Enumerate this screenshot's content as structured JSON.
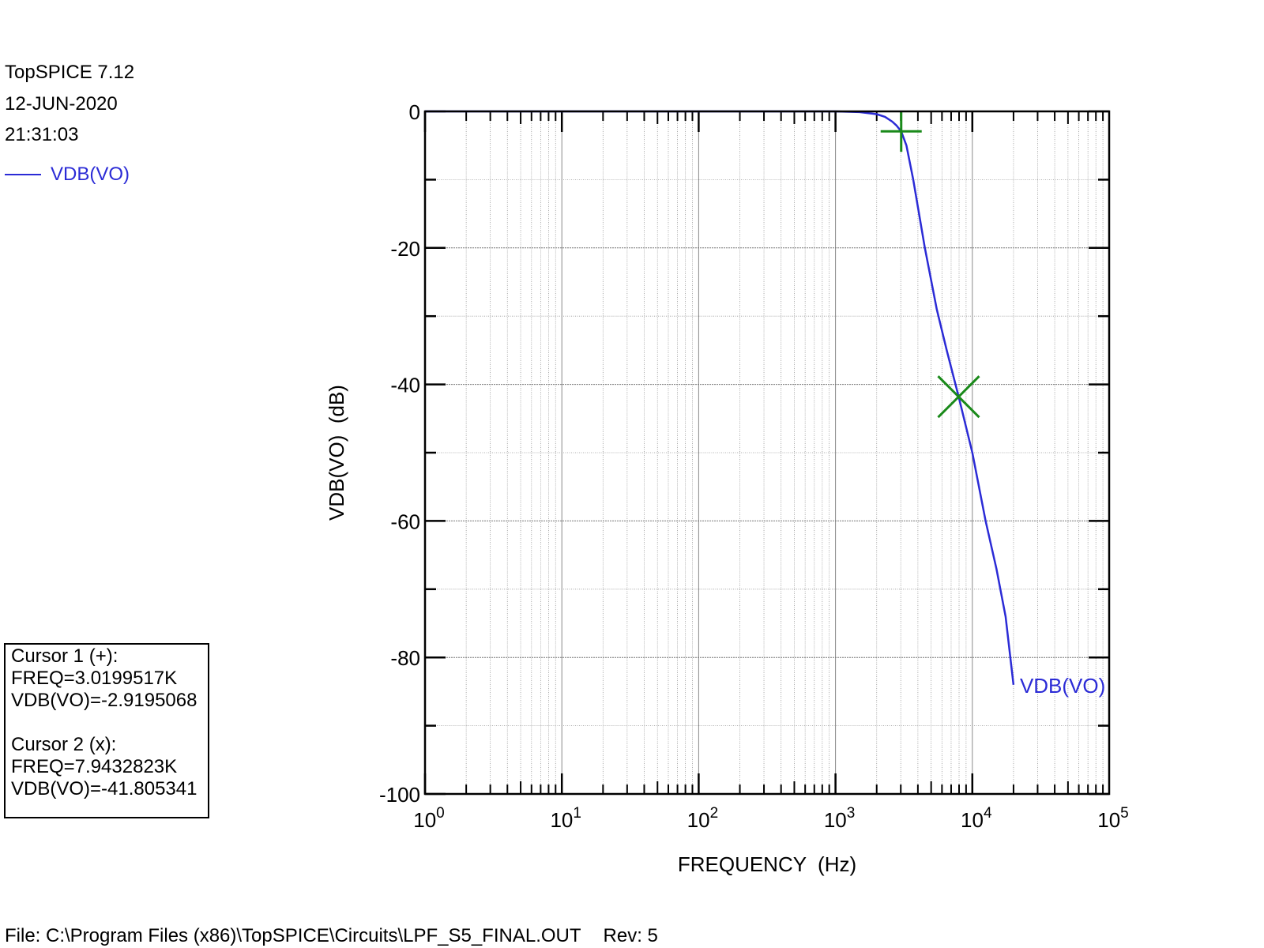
{
  "header": {
    "app": "TopSPICE 7.12",
    "date": "12-JUN-2020",
    "time": "21:31:03"
  },
  "legend": {
    "label": "VDB(VO)",
    "color": "#2b2bd6"
  },
  "cursors": {
    "c1_title": "Cursor 1 (+):",
    "c1_freq": "FREQ=3.0199517K",
    "c1_val": "VDB(VO)=-2.9195068",
    "c2_title": "Cursor 2 (x):",
    "c2_freq": "FREQ=7.9432823K",
    "c2_val": "VDB(VO)=-41.805341"
  },
  "footer": {
    "file": "File: C:\\Program Files (x86)\\TopSPICE\\Circuits\\LPF_S5_FINAL.OUT",
    "rev": "Rev: 5"
  },
  "chart_data": {
    "type": "line",
    "xlabel": "FREQUENCY  (Hz)",
    "ylabel": "VDB(VO)  (dB)",
    "xscale": "log",
    "xlim": [
      1,
      100000
    ],
    "ylim": [
      -100,
      0
    ],
    "grid": true,
    "xticks": [
      {
        "base": "10",
        "exp": "0"
      },
      {
        "base": "10",
        "exp": "1"
      },
      {
        "base": "10",
        "exp": "2"
      },
      {
        "base": "10",
        "exp": "3"
      },
      {
        "base": "10",
        "exp": "4"
      },
      {
        "base": "10",
        "exp": "5"
      }
    ],
    "yticks": [
      "0",
      "-20",
      "-40",
      "-60",
      "-80",
      "-100"
    ],
    "series": [
      {
        "name": "VDB(VO)",
        "color": "#2b2bd6",
        "x": [
          1,
          100,
          1000,
          1500,
          2000,
          2300,
          2600,
          2800,
          3019.95,
          3300,
          3700,
          4500,
          5500,
          6500,
          7943.28,
          10000,
          12500,
          15000,
          17500,
          20000
        ],
        "y": [
          0,
          0,
          0,
          -0.1,
          -0.4,
          -0.8,
          -1.5,
          -2.1,
          -2.92,
          -5,
          -10,
          -20,
          -29,
          -35,
          -41.8,
          -50,
          -60,
          -67,
          -74,
          -84
        ]
      }
    ],
    "series_label": "VDB(VO)",
    "cursor1": {
      "marker": "+",
      "x": 3019.9517,
      "y": -2.9195068,
      "color": "#1a8a1a"
    },
    "cursor2": {
      "marker": "x",
      "x": 7943.2823,
      "y": -41.805341,
      "color": "#1a8a1a"
    }
  }
}
